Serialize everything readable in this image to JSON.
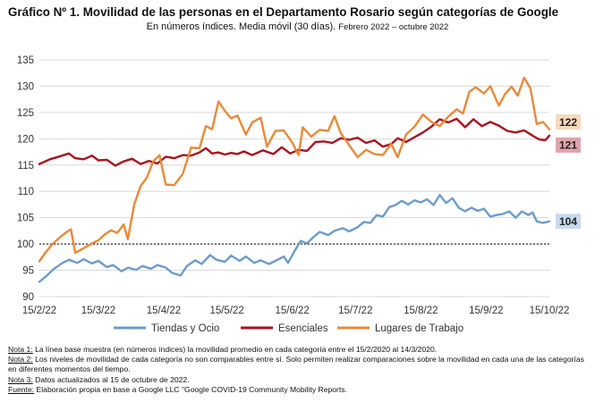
{
  "title": "Gráfico Nº 1. Movilidad de las personas en el Departamento Rosario según categorías de Google",
  "subtitle_main": "En números índices. Media móvil (30 días).",
  "subtitle_period": "Febrero 2022 – octubre 2022",
  "colors": {
    "tiendas": "#6C9CCB",
    "esenciales": "#A8121E",
    "lugares": "#E9893A",
    "baseline": "#000000",
    "grid": "#D9D9D9",
    "label_tiendas_bg": "#C9D9EC",
    "label_esenciales_bg": "#E0A4AB",
    "label_lugares_bg": "#F8D9BC"
  },
  "notes": [
    {
      "key": "Nota 1:",
      "text": " La línea base muestra (en números índices) la movilidad promedio en cada categoría entre el 15/2/2020 al 14/3/2020."
    },
    {
      "key": "Nota 2:",
      "text": " Los niveles de movilidad de cada categoría no son comparables entre sí. Solo permiten realizar comparaciones sobre la movilidad en cada una de las categorías en diferentes momentos del tiempo."
    },
    {
      "key": "Nota 3:",
      "text": " Datos actualizados al 15 de octubre de 2022."
    },
    {
      "key": "Fuente:",
      "text": " Elaboración propia en base a Google LLC \"Google COVID-19 Community Mobility Reports."
    }
  ],
  "chart_data": {
    "type": "line",
    "x_start": "2022-02-15",
    "x_end": "2022-10-15",
    "x_ticks": [
      "15/2/22",
      "15/3/22",
      "15/4/22",
      "15/5/22",
      "15/6/22",
      "15/7/22",
      "15/8/22",
      "15/9/22",
      "15/10/22"
    ],
    "y_ticks": [
      90,
      95,
      100,
      105,
      110,
      115,
      120,
      125,
      130,
      135
    ],
    "ylim": [
      90,
      135
    ],
    "baseline": 100,
    "grid": "horizontal",
    "legend_position": "bottom",
    "end_labels": {
      "lugares": "122",
      "esenciales": "121",
      "tiendas": "104"
    },
    "series": [
      {
        "key": "tiendas",
        "name": "Tiendas y Ocio",
        "points": [
          [
            "2022-02-15",
            92.8
          ],
          [
            "2022-02-18",
            93.8
          ],
          [
            "2022-02-22",
            95.3
          ],
          [
            "2022-02-26",
            96.4
          ],
          [
            "2022-03-01",
            97.0
          ],
          [
            "2022-03-05",
            96.4
          ],
          [
            "2022-03-08",
            97.1
          ],
          [
            "2022-03-12",
            96.3
          ],
          [
            "2022-03-15",
            96.8
          ],
          [
            "2022-03-19",
            95.6
          ],
          [
            "2022-03-22",
            96.0
          ],
          [
            "2022-03-26",
            94.8
          ],
          [
            "2022-03-29",
            95.5
          ],
          [
            "2022-04-02",
            95.1
          ],
          [
            "2022-04-05",
            95.8
          ],
          [
            "2022-04-09",
            95.3
          ],
          [
            "2022-04-12",
            96.0
          ],
          [
            "2022-04-16",
            95.5
          ],
          [
            "2022-04-19",
            94.5
          ],
          [
            "2022-04-23",
            94.0
          ],
          [
            "2022-04-26",
            95.8
          ],
          [
            "2022-04-30",
            96.9
          ],
          [
            "2022-05-03",
            96.2
          ],
          [
            "2022-05-07",
            97.9
          ],
          [
            "2022-05-10",
            97.0
          ],
          [
            "2022-05-14",
            96.6
          ],
          [
            "2022-05-17",
            97.8
          ],
          [
            "2022-05-21",
            96.8
          ],
          [
            "2022-05-24",
            97.6
          ],
          [
            "2022-05-28",
            96.4
          ],
          [
            "2022-05-31",
            96.9
          ],
          [
            "2022-06-04",
            96.2
          ],
          [
            "2022-06-07",
            96.8
          ],
          [
            "2022-06-11",
            97.6
          ],
          [
            "2022-06-13",
            96.4
          ],
          [
            "2022-06-16",
            98.6
          ],
          [
            "2022-06-19",
            100.6
          ],
          [
            "2022-06-22",
            100.1
          ],
          [
            "2022-06-25",
            101.3
          ],
          [
            "2022-06-28",
            102.3
          ],
          [
            "2022-07-02",
            101.7
          ],
          [
            "2022-07-05",
            102.5
          ],
          [
            "2022-07-09",
            103.0
          ],
          [
            "2022-07-12",
            102.4
          ],
          [
            "2022-07-16",
            103.2
          ],
          [
            "2022-07-19",
            104.2
          ],
          [
            "2022-07-22",
            104.0
          ],
          [
            "2022-07-25",
            105.5
          ],
          [
            "2022-07-28",
            105.2
          ],
          [
            "2022-07-31",
            107.0
          ],
          [
            "2022-08-03",
            107.4
          ],
          [
            "2022-08-06",
            108.2
          ],
          [
            "2022-08-09",
            107.5
          ],
          [
            "2022-08-12",
            108.3
          ],
          [
            "2022-08-15",
            107.9
          ],
          [
            "2022-08-18",
            108.5
          ],
          [
            "2022-08-21",
            107.4
          ],
          [
            "2022-08-24",
            109.3
          ],
          [
            "2022-08-27",
            107.8
          ],
          [
            "2022-08-30",
            108.7
          ],
          [
            "2022-09-02",
            106.9
          ],
          [
            "2022-09-05",
            106.2
          ],
          [
            "2022-09-08",
            106.9
          ],
          [
            "2022-09-11",
            106.3
          ],
          [
            "2022-09-14",
            106.7
          ],
          [
            "2022-09-17",
            105.2
          ],
          [
            "2022-09-20",
            105.5
          ],
          [
            "2022-09-23",
            105.7
          ],
          [
            "2022-09-26",
            106.2
          ],
          [
            "2022-09-29",
            105.0
          ],
          [
            "2022-10-02",
            106.2
          ],
          [
            "2022-10-05",
            105.5
          ],
          [
            "2022-10-07",
            106.0
          ],
          [
            "2022-10-09",
            104.3
          ],
          [
            "2022-10-12",
            104.0
          ],
          [
            "2022-10-15",
            104.3
          ]
        ]
      },
      {
        "key": "esenciales",
        "name": "Esenciales",
        "points": [
          [
            "2022-02-15",
            115.2
          ],
          [
            "2022-02-20",
            116.1
          ],
          [
            "2022-02-25",
            116.7
          ],
          [
            "2022-03-01",
            117.2
          ],
          [
            "2022-03-04",
            116.3
          ],
          [
            "2022-03-08",
            116.1
          ],
          [
            "2022-03-12",
            116.8
          ],
          [
            "2022-03-15",
            115.9
          ],
          [
            "2022-03-19",
            116.0
          ],
          [
            "2022-03-23",
            114.9
          ],
          [
            "2022-03-27",
            115.7
          ],
          [
            "2022-03-31",
            116.2
          ],
          [
            "2022-04-04",
            115.2
          ],
          [
            "2022-04-08",
            115.8
          ],
          [
            "2022-04-12",
            115.3
          ],
          [
            "2022-04-16",
            116.6
          ],
          [
            "2022-04-20",
            116.3
          ],
          [
            "2022-04-24",
            116.9
          ],
          [
            "2022-04-28",
            116.8
          ],
          [
            "2022-05-02",
            117.4
          ],
          [
            "2022-05-05",
            118.2
          ],
          [
            "2022-05-08",
            117.2
          ],
          [
            "2022-05-11",
            117.4
          ],
          [
            "2022-05-14",
            117.0
          ],
          [
            "2022-05-17",
            117.3
          ],
          [
            "2022-05-20",
            117.1
          ],
          [
            "2022-05-23",
            117.6
          ],
          [
            "2022-05-27",
            116.9
          ],
          [
            "2022-06-01",
            117.8
          ],
          [
            "2022-06-06",
            117.1
          ],
          [
            "2022-06-10",
            118.4
          ],
          [
            "2022-06-14",
            117.2
          ],
          [
            "2022-06-18",
            117.9
          ],
          [
            "2022-06-22",
            117.7
          ],
          [
            "2022-06-26",
            119.4
          ],
          [
            "2022-06-30",
            119.5
          ],
          [
            "2022-07-04",
            119.2
          ],
          [
            "2022-07-08",
            120.1
          ],
          [
            "2022-07-12",
            119.8
          ],
          [
            "2022-07-16",
            120.2
          ],
          [
            "2022-07-20",
            119.2
          ],
          [
            "2022-07-24",
            119.7
          ],
          [
            "2022-07-28",
            118.5
          ],
          [
            "2022-08-01",
            119.0
          ],
          [
            "2022-08-04",
            120.1
          ],
          [
            "2022-08-08",
            119.4
          ],
          [
            "2022-08-12",
            120.3
          ],
          [
            "2022-08-16",
            121.2
          ],
          [
            "2022-08-20",
            122.3
          ],
          [
            "2022-08-24",
            123.7
          ],
          [
            "2022-08-28",
            123.1
          ],
          [
            "2022-09-01",
            123.8
          ],
          [
            "2022-09-05",
            122.2
          ],
          [
            "2022-09-09",
            123.7
          ],
          [
            "2022-09-13",
            122.4
          ],
          [
            "2022-09-17",
            123.2
          ],
          [
            "2022-09-21",
            122.5
          ],
          [
            "2022-09-25",
            121.5
          ],
          [
            "2022-09-29",
            121.2
          ],
          [
            "2022-10-03",
            121.6
          ],
          [
            "2022-10-07",
            120.6
          ],
          [
            "2022-10-10",
            119.9
          ],
          [
            "2022-10-13",
            119.7
          ],
          [
            "2022-10-15",
            120.6
          ]
        ]
      },
      {
        "key": "lugares",
        "name": "Lugares de Trabajo",
        "points": [
          [
            "2022-02-15",
            96.7
          ],
          [
            "2022-02-18",
            98.4
          ],
          [
            "2022-02-21",
            99.9
          ],
          [
            "2022-02-24",
            101.0
          ],
          [
            "2022-02-28",
            102.3
          ],
          [
            "2022-03-02",
            102.8
          ],
          [
            "2022-03-04",
            98.3
          ],
          [
            "2022-03-08",
            99.2
          ],
          [
            "2022-03-12",
            100.1
          ],
          [
            "2022-03-15",
            100.7
          ],
          [
            "2022-03-18",
            101.8
          ],
          [
            "2022-03-21",
            102.6
          ],
          [
            "2022-03-24",
            102.1
          ],
          [
            "2022-03-27",
            103.7
          ],
          [
            "2022-03-29",
            100.9
          ],
          [
            "2022-04-01",
            107.5
          ],
          [
            "2022-04-04",
            111.0
          ],
          [
            "2022-04-07",
            112.6
          ],
          [
            "2022-04-10",
            115.7
          ],
          [
            "2022-04-13",
            116.9
          ],
          [
            "2022-04-16",
            111.3
          ],
          [
            "2022-04-20",
            111.2
          ],
          [
            "2022-04-24",
            113.3
          ],
          [
            "2022-04-28",
            118.3
          ],
          [
            "2022-05-02",
            118.2
          ],
          [
            "2022-05-05",
            122.4
          ],
          [
            "2022-05-08",
            121.8
          ],
          [
            "2022-05-11",
            127.1
          ],
          [
            "2022-05-14",
            125.3
          ],
          [
            "2022-05-17",
            123.9
          ],
          [
            "2022-05-20",
            124.4
          ],
          [
            "2022-05-24",
            120.8
          ],
          [
            "2022-05-27",
            123.1
          ],
          [
            "2022-05-31",
            124.0
          ],
          [
            "2022-06-03",
            118.5
          ],
          [
            "2022-06-07",
            121.5
          ],
          [
            "2022-06-11",
            121.6
          ],
          [
            "2022-06-15",
            119.3
          ],
          [
            "2022-06-18",
            116.9
          ],
          [
            "2022-06-20",
            122.2
          ],
          [
            "2022-06-24",
            120.4
          ],
          [
            "2022-06-28",
            121.7
          ],
          [
            "2022-07-02",
            121.5
          ],
          [
            "2022-07-05",
            124.3
          ],
          [
            "2022-07-08",
            121.1
          ],
          [
            "2022-07-12",
            118.8
          ],
          [
            "2022-07-16",
            116.5
          ],
          [
            "2022-07-20",
            117.9
          ],
          [
            "2022-07-24",
            117.1
          ],
          [
            "2022-07-28",
            116.9
          ],
          [
            "2022-08-01",
            119.0
          ],
          [
            "2022-08-04",
            116.5
          ],
          [
            "2022-08-08",
            120.8
          ],
          [
            "2022-08-12",
            122.3
          ],
          [
            "2022-08-16",
            124.6
          ],
          [
            "2022-08-20",
            123.2
          ],
          [
            "2022-08-24",
            122.4
          ],
          [
            "2022-08-28",
            124.2
          ],
          [
            "2022-09-01",
            125.6
          ],
          [
            "2022-09-04",
            124.8
          ],
          [
            "2022-09-07",
            128.9
          ],
          [
            "2022-09-10",
            129.8
          ],
          [
            "2022-09-14",
            128.6
          ],
          [
            "2022-09-17",
            130.0
          ],
          [
            "2022-09-21",
            126.3
          ],
          [
            "2022-09-24",
            128.5
          ],
          [
            "2022-09-27",
            129.9
          ],
          [
            "2022-09-30",
            128.2
          ],
          [
            "2022-10-03",
            131.6
          ],
          [
            "2022-10-06",
            129.6
          ],
          [
            "2022-10-09",
            122.8
          ],
          [
            "2022-10-12",
            123.2
          ],
          [
            "2022-10-15",
            121.8
          ]
        ]
      }
    ]
  }
}
